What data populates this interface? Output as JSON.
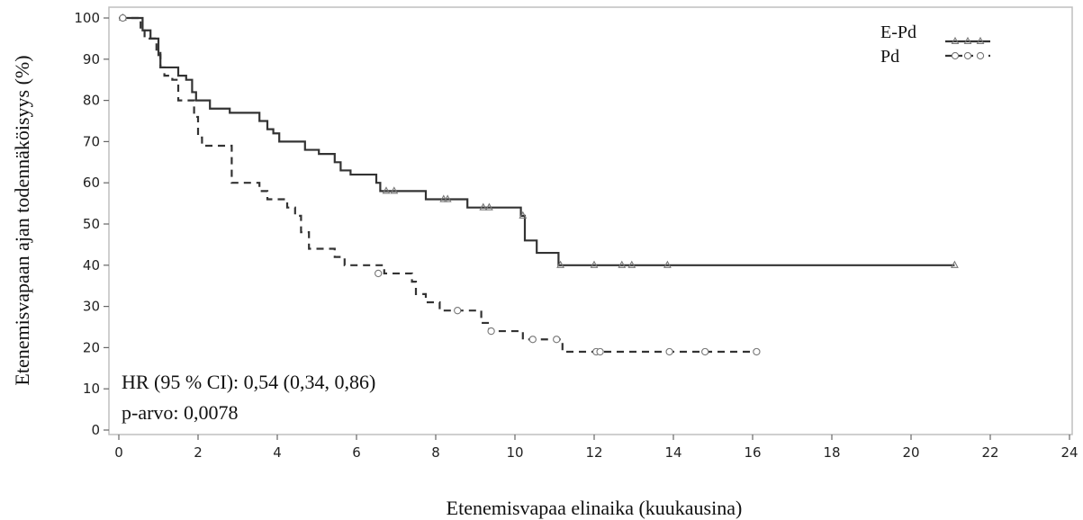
{
  "chart_data": {
    "type": "line",
    "title": "",
    "xlabel": "Etenemisvapaa elinaika (kuukausina)",
    "ylabel": "Etenemisvapaan ajan todennäköisyys (%)",
    "xlim": [
      0,
      24
    ],
    "ylim": [
      0,
      100
    ],
    "xticks": [
      0,
      2,
      4,
      6,
      8,
      10,
      12,
      14,
      16,
      18,
      20,
      22,
      24
    ],
    "yticks": [
      0,
      10,
      20,
      30,
      40,
      50,
      60,
      70,
      80,
      90,
      100
    ],
    "grid": false,
    "legend_position": "top-right",
    "annotations": [
      "HR (95 % CI): 0,54 (0,34, 0,86)",
      "p-arvo: 0,0078"
    ],
    "series": [
      {
        "name": "E-Pd",
        "style": "solid",
        "marker": "triangle",
        "color": "#333333",
        "steps": [
          [
            0,
            100
          ],
          [
            0.6,
            97
          ],
          [
            0.8,
            95
          ],
          [
            1.0,
            91
          ],
          [
            1.05,
            88
          ],
          [
            1.5,
            86
          ],
          [
            1.7,
            85
          ],
          [
            1.85,
            82
          ],
          [
            1.95,
            80
          ],
          [
            2.3,
            78
          ],
          [
            2.8,
            77
          ],
          [
            3.55,
            75
          ],
          [
            3.75,
            73
          ],
          [
            3.9,
            72
          ],
          [
            4.05,
            70
          ],
          [
            4.7,
            68
          ],
          [
            5.05,
            67
          ],
          [
            5.45,
            65
          ],
          [
            5.6,
            63
          ],
          [
            5.85,
            62
          ],
          [
            6.5,
            60
          ],
          [
            6.6,
            58
          ],
          [
            7.75,
            56
          ],
          [
            8.8,
            54
          ],
          [
            10.15,
            52
          ],
          [
            10.25,
            46
          ],
          [
            10.55,
            43
          ],
          [
            11.1,
            40
          ],
          [
            21.1,
            40
          ]
        ],
        "censored": [
          [
            0.1,
            100
          ],
          [
            6.75,
            58
          ],
          [
            6.95,
            58
          ],
          [
            8.2,
            56
          ],
          [
            8.3,
            56
          ],
          [
            9.2,
            54
          ],
          [
            9.35,
            54
          ],
          [
            10.2,
            52
          ],
          [
            11.15,
            40
          ],
          [
            12.0,
            40
          ],
          [
            12.7,
            40
          ],
          [
            12.95,
            40
          ],
          [
            13.85,
            40
          ],
          [
            21.1,
            40
          ]
        ]
      },
      {
        "name": "Pd",
        "style": "dashed",
        "marker": "circle",
        "color": "#333333",
        "steps": [
          [
            0,
            100
          ],
          [
            0.55,
            97
          ],
          [
            0.65,
            95
          ],
          [
            0.95,
            92
          ],
          [
            1.05,
            88
          ],
          [
            1.15,
            86
          ],
          [
            1.35,
            85
          ],
          [
            1.5,
            80
          ],
          [
            1.9,
            76
          ],
          [
            2.0,
            71
          ],
          [
            2.1,
            69
          ],
          [
            2.85,
            60
          ],
          [
            3.55,
            58
          ],
          [
            3.75,
            56
          ],
          [
            4.25,
            54
          ],
          [
            4.45,
            52
          ],
          [
            4.6,
            48
          ],
          [
            4.8,
            44
          ],
          [
            5.45,
            42
          ],
          [
            5.7,
            40
          ],
          [
            6.7,
            38
          ],
          [
            7.4,
            36
          ],
          [
            7.5,
            33
          ],
          [
            7.75,
            31
          ],
          [
            8.1,
            29
          ],
          [
            9.15,
            26
          ],
          [
            9.35,
            24
          ],
          [
            10.2,
            22
          ],
          [
            11.2,
            19
          ],
          [
            16.1,
            19
          ]
        ],
        "censored": [
          [
            0.1,
            100
          ],
          [
            6.55,
            38
          ],
          [
            8.55,
            29
          ],
          [
            9.4,
            24
          ],
          [
            10.45,
            22
          ],
          [
            11.05,
            22
          ],
          [
            12.05,
            19
          ],
          [
            12.15,
            19
          ],
          [
            13.9,
            19
          ],
          [
            14.8,
            19
          ],
          [
            16.1,
            19
          ]
        ]
      }
    ]
  }
}
